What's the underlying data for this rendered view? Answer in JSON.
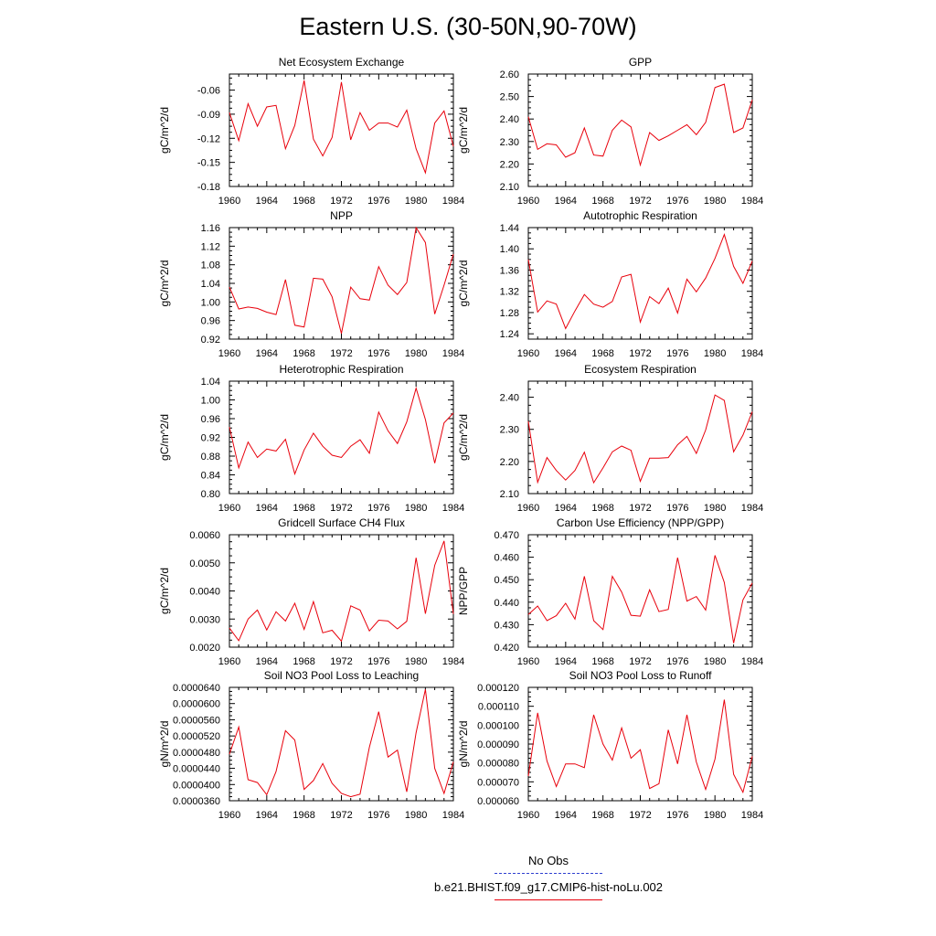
{
  "page": {
    "title": "Eastern U.S. (30-50N,90-70W)"
  },
  "legend": {
    "entries": [
      {
        "label": "No Obs",
        "color": "#2f3fd0",
        "style": "dashed"
      },
      {
        "label": "b.e21.BHIST.f09_g17.CMIP6-hist-noLu.002",
        "color": "#e8000b",
        "style": "solid"
      }
    ]
  },
  "colors": {
    "series": "#e8000b",
    "axis": "#000000"
  },
  "chart_data": [
    {
      "type": "line",
      "title": "Net Ecosystem Exchange",
      "ylabel": "gC/m^2/d",
      "xlim": [
        1960,
        1984
      ],
      "ylim": [
        -0.18,
        -0.04
      ],
      "xticks": [
        "1960",
        "1964",
        "1968",
        "1972",
        "1976",
        "1980",
        "1984"
      ],
      "yticks": [
        "-0.18",
        "-0.15",
        "-0.12",
        "-0.09",
        "-0.06"
      ],
      "x": [
        1960,
        1961,
        1962,
        1963,
        1964,
        1965,
        1966,
        1967,
        1968,
        1969,
        1970,
        1971,
        1972,
        1973,
        1974,
        1975,
        1976,
        1977,
        1978,
        1979,
        1980,
        1981,
        1982,
        1983,
        1984
      ],
      "series": [
        {
          "values": [
            -0.088,
            -0.123,
            -0.077,
            -0.105,
            -0.081,
            -0.079,
            -0.133,
            -0.104,
            -0.048,
            -0.121,
            -0.142,
            -0.119,
            -0.05,
            -0.122,
            -0.088,
            -0.11,
            -0.101,
            -0.101,
            -0.106,
            -0.085,
            -0.133,
            -0.163,
            -0.101,
            -0.086,
            -0.13
          ]
        }
      ]
    },
    {
      "type": "line",
      "title": "GPP",
      "ylabel": "gC/m^2/d",
      "xlim": [
        1960,
        1984
      ],
      "ylim": [
        2.1,
        2.6
      ],
      "xticks": [
        "1960",
        "1964",
        "1968",
        "1972",
        "1976",
        "1980",
        "1984"
      ],
      "yticks": [
        "2.10",
        "2.20",
        "2.30",
        "2.40",
        "2.50",
        "2.60"
      ],
      "x": [
        1960,
        1961,
        1962,
        1963,
        1964,
        1965,
        1966,
        1967,
        1968,
        1969,
        1970,
        1971,
        1972,
        1973,
        1974,
        1975,
        1976,
        1977,
        1978,
        1979,
        1980,
        1981,
        1982,
        1983,
        1984
      ],
      "series": [
        {
          "values": [
            2.41,
            2.265,
            2.29,
            2.285,
            2.23,
            2.25,
            2.36,
            2.24,
            2.235,
            2.35,
            2.395,
            2.365,
            2.195,
            2.34,
            2.305,
            2.325,
            2.35,
            2.375,
            2.33,
            2.385,
            2.54,
            2.555,
            2.34,
            2.36,
            2.485
          ]
        }
      ]
    },
    {
      "type": "line",
      "title": "NPP",
      "ylabel": "gC/m^2/d",
      "xlim": [
        1960,
        1984
      ],
      "ylim": [
        0.92,
        1.16
      ],
      "xticks": [
        "1960",
        "1964",
        "1968",
        "1972",
        "1976",
        "1980",
        "1984"
      ],
      "yticks": [
        "0.92",
        "0.96",
        "1.00",
        "1.04",
        "1.08",
        "1.12",
        "1.16"
      ],
      "x": [
        1960,
        1961,
        1962,
        1963,
        1964,
        1965,
        1966,
        1967,
        1968,
        1969,
        1970,
        1971,
        1972,
        1973,
        1974,
        1975,
        1976,
        1977,
        1978,
        1979,
        1980,
        1981,
        1982,
        1983,
        1984
      ],
      "series": [
        {
          "values": [
            1.032,
            0.985,
            0.989,
            0.986,
            0.978,
            0.973,
            1.048,
            0.95,
            0.946,
            1.051,
            1.049,
            1.011,
            0.932,
            1.032,
            1.007,
            1.004,
            1.076,
            1.036,
            1.016,
            1.042,
            1.16,
            1.128,
            0.974,
            1.036,
            1.103
          ]
        }
      ]
    },
    {
      "type": "line",
      "title": "Autotrophic Respiration",
      "ylabel": "gC/m^2/d",
      "xlim": [
        1960,
        1984
      ],
      "ylim": [
        1.23,
        1.44
      ],
      "xticks": [
        "1960",
        "1964",
        "1968",
        "1972",
        "1976",
        "1980",
        "1984"
      ],
      "yticks": [
        "1.24",
        "1.28",
        "1.32",
        "1.36",
        "1.40",
        "1.44"
      ],
      "x": [
        1960,
        1961,
        1962,
        1963,
        1964,
        1965,
        1966,
        1967,
        1968,
        1969,
        1970,
        1971,
        1972,
        1973,
        1974,
        1975,
        1976,
        1977,
        1978,
        1979,
        1980,
        1981,
        1982,
        1983,
        1984
      ],
      "series": [
        {
          "values": [
            1.38,
            1.281,
            1.302,
            1.296,
            1.25,
            1.283,
            1.314,
            1.296,
            1.29,
            1.301,
            1.347,
            1.352,
            1.262,
            1.31,
            1.297,
            1.326,
            1.279,
            1.343,
            1.319,
            1.345,
            1.382,
            1.427,
            1.367,
            1.335,
            1.377
          ]
        }
      ]
    },
    {
      "type": "line",
      "title": "Heterotrophic Respiration",
      "ylabel": "gC/m^2/d",
      "xlim": [
        1960,
        1984
      ],
      "ylim": [
        0.8,
        1.04
      ],
      "xticks": [
        "1960",
        "1964",
        "1968",
        "1972",
        "1976",
        "1980",
        "1984"
      ],
      "yticks": [
        "0.80",
        "0.84",
        "0.88",
        "0.92",
        "0.96",
        "1.00",
        "1.04"
      ],
      "x": [
        1960,
        1961,
        1962,
        1963,
        1964,
        1965,
        1966,
        1967,
        1968,
        1969,
        1970,
        1971,
        1972,
        1973,
        1974,
        1975,
        1976,
        1977,
        1978,
        1979,
        1980,
        1981,
        1982,
        1983,
        1984
      ],
      "series": [
        {
          "values": [
            0.942,
            0.855,
            0.91,
            0.877,
            0.895,
            0.891,
            0.916,
            0.842,
            0.893,
            0.929,
            0.901,
            0.882,
            0.877,
            0.901,
            0.915,
            0.886,
            0.974,
            0.934,
            0.907,
            0.953,
            1.025,
            0.958,
            0.865,
            0.951,
            0.972
          ]
        }
      ]
    },
    {
      "type": "line",
      "title": "Ecosystem Respiration",
      "ylabel": "gC/m^2/d",
      "xlim": [
        1960,
        1984
      ],
      "ylim": [
        2.1,
        2.45
      ],
      "xticks": [
        "1960",
        "1964",
        "1968",
        "1972",
        "1976",
        "1980",
        "1984"
      ],
      "yticks": [
        "2.10",
        "2.20",
        "2.30",
        "2.40"
      ],
      "x": [
        1960,
        1961,
        1962,
        1963,
        1964,
        1965,
        1966,
        1967,
        1968,
        1969,
        1970,
        1971,
        1972,
        1973,
        1974,
        1975,
        1976,
        1977,
        1978,
        1979,
        1980,
        1981,
        1982,
        1983,
        1984
      ],
      "series": [
        {
          "values": [
            2.325,
            2.135,
            2.212,
            2.172,
            2.142,
            2.172,
            2.229,
            2.134,
            2.18,
            2.23,
            2.248,
            2.235,
            2.138,
            2.21,
            2.21,
            2.212,
            2.252,
            2.278,
            2.225,
            2.298,
            2.407,
            2.39,
            2.23,
            2.282,
            2.355
          ]
        }
      ]
    },
    {
      "type": "line",
      "title": "Gridcell Surface CH4 Flux",
      "ylabel": "gC/m^2/d",
      "xlim": [
        1960,
        1984
      ],
      "ylim": [
        0.002,
        0.006
      ],
      "xticks": [
        "1960",
        "1964",
        "1968",
        "1972",
        "1976",
        "1980",
        "1984"
      ],
      "yticks": [
        "0.0020",
        "0.0030",
        "0.0040",
        "0.0050",
        "0.0060"
      ],
      "x": [
        1960,
        1961,
        1962,
        1963,
        1964,
        1965,
        1966,
        1967,
        1968,
        1969,
        1970,
        1971,
        1972,
        1973,
        1974,
        1975,
        1976,
        1977,
        1978,
        1979,
        1980,
        1981,
        1982,
        1983,
        1984
      ],
      "series": [
        {
          "values": [
            0.00268,
            0.00223,
            0.003,
            0.00332,
            0.00261,
            0.00326,
            0.00293,
            0.00356,
            0.00263,
            0.00362,
            0.00251,
            0.0026,
            0.00221,
            0.00347,
            0.00332,
            0.00258,
            0.00296,
            0.00293,
            0.00265,
            0.00292,
            0.00518,
            0.00319,
            0.00491,
            0.00578,
            0.00318
          ]
        }
      ]
    },
    {
      "type": "line",
      "title": "Carbon Use Efficiency (NPP/GPP)",
      "ylabel": "NPP/GPP",
      "xlim": [
        1960,
        1984
      ],
      "ylim": [
        0.42,
        0.47
      ],
      "xticks": [
        "1960",
        "1964",
        "1968",
        "1972",
        "1976",
        "1980",
        "1984"
      ],
      "yticks": [
        "0.420",
        "0.430",
        "0.440",
        "0.450",
        "0.460",
        "0.470"
      ],
      "x": [
        1960,
        1961,
        1962,
        1963,
        1964,
        1965,
        1966,
        1967,
        1968,
        1969,
        1970,
        1971,
        1972,
        1973,
        1974,
        1975,
        1976,
        1977,
        1978,
        1979,
        1980,
        1981,
        1982,
        1983,
        1984
      ],
      "series": [
        {
          "values": [
            0.4345,
            0.4383,
            0.4318,
            0.434,
            0.4395,
            0.4325,
            0.4515,
            0.4318,
            0.4278,
            0.4515,
            0.4445,
            0.4342,
            0.4338,
            0.4455,
            0.4358,
            0.4368,
            0.4598,
            0.4405,
            0.4425,
            0.4365,
            0.4608,
            0.4488,
            0.4218,
            0.441,
            0.4485
          ]
        }
      ]
    },
    {
      "type": "line",
      "title": "Soil NO3 Pool Loss to Leaching",
      "ylabel": "gN/m^2/d",
      "xlim": [
        1960,
        1984
      ],
      "ylim": [
        3.6e-05,
        6.4e-05
      ],
      "xticks": [
        "1960",
        "1964",
        "1968",
        "1972",
        "1976",
        "1980",
        "1984"
      ],
      "yticks": [
        "0.0000360",
        "0.0000400",
        "0.0000440",
        "0.0000480",
        "0.0000520",
        "0.0000560",
        "0.0000600",
        "0.0000640"
      ],
      "x": [
        1960,
        1961,
        1962,
        1963,
        1964,
        1965,
        1966,
        1967,
        1968,
        1969,
        1970,
        1971,
        1972,
        1973,
        1974,
        1975,
        1976,
        1977,
        1978,
        1979,
        1980,
        1981,
        1982,
        1983,
        1984
      ],
      "series": [
        {
          "values": [
            4.75e-05,
            5.42e-05,
            4.12e-05,
            4.05e-05,
            3.75e-05,
            4.32e-05,
            5.33e-05,
            5.1e-05,
            3.88e-05,
            4.1e-05,
            4.52e-05,
            4.03e-05,
            3.78e-05,
            3.7e-05,
            3.76e-05,
            4.92e-05,
            5.8e-05,
            4.68e-05,
            4.85e-05,
            3.82e-05,
            5.28e-05,
            6.35e-05,
            4.4e-05,
            3.78e-05,
            4.56e-05
          ]
        }
      ]
    },
    {
      "type": "line",
      "title": "Soil NO3 Pool Loss to Runoff",
      "ylabel": "gN/m^2/d",
      "xlim": [
        1960,
        1984
      ],
      "ylim": [
        6e-05,
        0.00012
      ],
      "xticks": [
        "1960",
        "1964",
        "1968",
        "1972",
        "1976",
        "1980",
        "1984"
      ],
      "yticks": [
        "0.000060",
        "0.000070",
        "0.000080",
        "0.000090",
        "0.000100",
        "0.000110",
        "0.000120"
      ],
      "x": [
        1960,
        1961,
        1962,
        1963,
        1964,
        1965,
        1966,
        1967,
        1968,
        1969,
        1970,
        1971,
        1972,
        1973,
        1974,
        1975,
        1976,
        1977,
        1978,
        1979,
        1980,
        1981,
        1982,
        1983,
        1984
      ],
      "series": [
        {
          "values": [
            7.3e-05,
            0.0001065,
            8.1e-05,
            6.75e-05,
            7.95e-05,
            7.95e-05,
            7.75e-05,
            0.0001055,
            9e-05,
            8.15e-05,
            9.85e-05,
            8.25e-05,
            8.7e-05,
            6.65e-05,
            6.9e-05,
            9.75e-05,
            7.95e-05,
            0.0001055,
            8.05e-05,
            6.6e-05,
            8.2e-05,
            0.0001135,
            7.4e-05,
            6.45e-05,
            8.35e-05
          ]
        }
      ]
    }
  ]
}
